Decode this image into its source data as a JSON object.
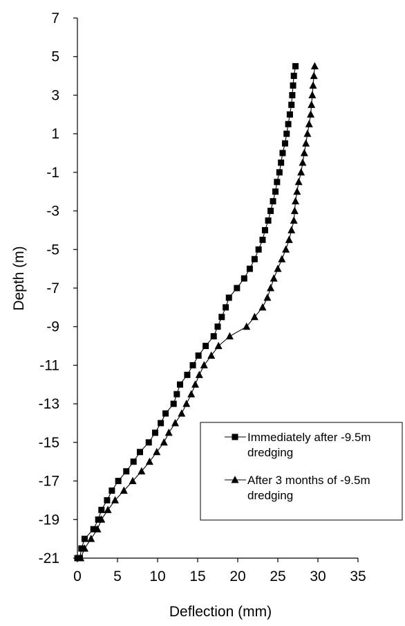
{
  "chart_data": {
    "type": "line",
    "title": "",
    "xlabel": "Deflection (mm)",
    "ylabel": "Depth (m)",
    "xlim": [
      0,
      35
    ],
    "ylim": [
      -21,
      7
    ],
    "xticks": [
      "0",
      "5",
      "10",
      "15",
      "20",
      "25",
      "30",
      "35"
    ],
    "yticks": [
      "7",
      "5",
      "3",
      "1",
      "-1",
      "-3",
      "-5",
      "-7",
      "-9",
      "-11",
      "-13",
      "-15",
      "-17",
      "-19",
      "-21"
    ],
    "grid": false,
    "legend_position": "bottom-right",
    "series": [
      {
        "name_lines": [
          "Immediately after -9.5m",
          "dredging"
        ],
        "marker": "square",
        "color": "#000000",
        "points": [
          [
            27.2,
            4.5
          ],
          [
            27.0,
            4.0
          ],
          [
            26.9,
            3.5
          ],
          [
            26.8,
            3.0
          ],
          [
            26.7,
            2.5
          ],
          [
            26.5,
            2.0
          ],
          [
            26.3,
            1.5
          ],
          [
            26.1,
            1.0
          ],
          [
            25.9,
            0.5
          ],
          [
            25.6,
            0.0
          ],
          [
            25.4,
            -0.5
          ],
          [
            25.2,
            -1.0
          ],
          [
            24.9,
            -1.5
          ],
          [
            24.7,
            -2.0
          ],
          [
            24.4,
            -2.5
          ],
          [
            24.1,
            -3.0
          ],
          [
            23.8,
            -3.5
          ],
          [
            23.4,
            -4.0
          ],
          [
            23.1,
            -4.5
          ],
          [
            22.6,
            -5.0
          ],
          [
            22.1,
            -5.5
          ],
          [
            21.5,
            -6.0
          ],
          [
            20.8,
            -6.5
          ],
          [
            19.9,
            -7.0
          ],
          [
            18.9,
            -7.5
          ],
          [
            18.5,
            -8.0
          ],
          [
            18.0,
            -8.5
          ],
          [
            17.5,
            -9.0
          ],
          [
            17.0,
            -9.5
          ],
          [
            16.0,
            -10.0
          ],
          [
            15.1,
            -10.5
          ],
          [
            14.4,
            -11.0
          ],
          [
            13.7,
            -11.5
          ],
          [
            12.8,
            -12.0
          ],
          [
            12.4,
            -12.5
          ],
          [
            12.0,
            -13.0
          ],
          [
            11.0,
            -13.5
          ],
          [
            10.4,
            -14.0
          ],
          [
            9.7,
            -14.5
          ],
          [
            8.9,
            -15.0
          ],
          [
            7.8,
            -15.5
          ],
          [
            7.0,
            -16.0
          ],
          [
            6.1,
            -16.5
          ],
          [
            5.1,
            -17.0
          ],
          [
            4.3,
            -17.5
          ],
          [
            3.7,
            -18.0
          ],
          [
            3.0,
            -18.5
          ],
          [
            2.6,
            -19.0
          ],
          [
            2.0,
            -19.5
          ],
          [
            0.9,
            -20.0
          ],
          [
            0.5,
            -20.5
          ],
          [
            0.3,
            -21.0
          ],
          [
            0.0,
            -21.0
          ]
        ]
      },
      {
        "name_lines": [
          "After 3 months of -9.5m",
          "dredging"
        ],
        "marker": "triangle",
        "color": "#000000",
        "points": [
          [
            29.6,
            4.5
          ],
          [
            29.5,
            4.0
          ],
          [
            29.4,
            3.5
          ],
          [
            29.3,
            3.0
          ],
          [
            29.2,
            2.5
          ],
          [
            29.1,
            2.0
          ],
          [
            28.9,
            1.5
          ],
          [
            28.7,
            1.0
          ],
          [
            28.5,
            0.5
          ],
          [
            28.3,
            0.0
          ],
          [
            28.1,
            -0.5
          ],
          [
            27.9,
            -1.0
          ],
          [
            27.6,
            -1.5
          ],
          [
            27.4,
            -2.0
          ],
          [
            27.2,
            -2.5
          ],
          [
            27.1,
            -3.0
          ],
          [
            27.0,
            -3.5
          ],
          [
            26.7,
            -4.0
          ],
          [
            26.4,
            -4.5
          ],
          [
            26.0,
            -5.0
          ],
          [
            25.5,
            -5.5
          ],
          [
            25.0,
            -6.0
          ],
          [
            24.5,
            -6.5
          ],
          [
            24.1,
            -7.0
          ],
          [
            23.7,
            -7.5
          ],
          [
            23.1,
            -8.0
          ],
          [
            22.1,
            -8.5
          ],
          [
            21.1,
            -9.0
          ],
          [
            19.0,
            -9.5
          ],
          [
            17.6,
            -10.0
          ],
          [
            16.7,
            -10.5
          ],
          [
            15.8,
            -11.0
          ],
          [
            15.2,
            -11.5
          ],
          [
            14.7,
            -12.0
          ],
          [
            14.2,
            -12.5
          ],
          [
            13.6,
            -13.0
          ],
          [
            13.0,
            -13.5
          ],
          [
            12.2,
            -14.0
          ],
          [
            11.4,
            -14.5
          ],
          [
            10.8,
            -15.0
          ],
          [
            9.9,
            -15.5
          ],
          [
            9.0,
            -16.0
          ],
          [
            8.0,
            -16.5
          ],
          [
            6.9,
            -17.0
          ],
          [
            5.8,
            -17.5
          ],
          [
            4.7,
            -18.0
          ],
          [
            3.8,
            -18.5
          ],
          [
            3.0,
            -19.0
          ],
          [
            2.5,
            -19.5
          ],
          [
            1.7,
            -20.0
          ],
          [
            0.9,
            -20.5
          ],
          [
            0.4,
            -21.0
          ]
        ]
      }
    ]
  }
}
